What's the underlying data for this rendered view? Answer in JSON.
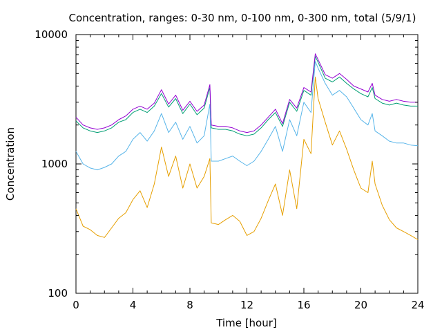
{
  "chart_data": {
    "type": "line",
    "title": "Concentration, ranges: 0-30 nm, 0-100 nm, 0-300 nm, total (5/9/1)",
    "xlabel": "Time [hour]",
    "ylabel": "Concentration",
    "xlim": [
      0,
      24
    ],
    "ylim": [
      100,
      10000
    ],
    "y_scale": "log",
    "x_ticks": [
      0,
      4,
      8,
      12,
      16,
      20,
      24
    ],
    "x_tick_labels": [
      "0",
      "4",
      "8",
      "12",
      "16",
      "20",
      "24"
    ],
    "y_ticks": [
      100,
      1000,
      10000
    ],
    "y_tick_labels": [
      "100",
      "1000",
      "10000"
    ],
    "grid": false,
    "legend": "none",
    "series": [
      {
        "color": "#e69f00",
        "x": [
          0,
          0.5,
          1,
          1.5,
          2,
          2.5,
          3,
          3.5,
          4,
          4.5,
          5,
          5.5,
          6,
          6.5,
          7,
          7.5,
          8,
          8.5,
          9,
          9.4,
          9.5,
          10,
          10.5,
          11,
          11.5,
          12,
          12.5,
          13,
          13.5,
          14,
          14.5,
          15,
          15.5,
          16,
          16.5,
          16.8,
          17,
          17.5,
          18,
          18.5,
          19,
          19.5,
          20,
          20.5,
          20.8,
          21,
          21.5,
          22,
          22.5,
          23,
          23.5,
          24
        ],
        "values": [
          450,
          330,
          310,
          280,
          270,
          320,
          380,
          420,
          530,
          620,
          460,
          700,
          1350,
          800,
          1150,
          650,
          1000,
          650,
          800,
          1100,
          350,
          340,
          370,
          400,
          360,
          280,
          300,
          380,
          520,
          700,
          400,
          900,
          450,
          1550,
          1200,
          4700,
          3200,
          2100,
          1400,
          1800,
          1300,
          900,
          650,
          600,
          1050,
          700,
          480,
          370,
          320,
          300,
          280,
          260
        ]
      },
      {
        "color": "#56b4e9",
        "x": [
          0,
          0.5,
          1,
          1.5,
          2,
          2.5,
          3,
          3.5,
          4,
          4.5,
          5,
          5.5,
          6,
          6.5,
          7,
          7.5,
          8,
          8.5,
          9,
          9.4,
          9.5,
          10,
          10.5,
          11,
          11.5,
          12,
          12.5,
          13,
          13.5,
          14,
          14.5,
          15,
          15.5,
          16,
          16.5,
          16.8,
          17,
          17.5,
          18,
          18.5,
          19,
          19.5,
          20,
          20.5,
          20.8,
          21,
          21.5,
          22,
          22.5,
          23,
          23.5,
          24
        ],
        "values": [
          1250,
          1000,
          930,
          900,
          940,
          1000,
          1150,
          1250,
          1550,
          1750,
          1500,
          1800,
          2450,
          1750,
          2100,
          1550,
          1950,
          1450,
          1650,
          2900,
          1050,
          1050,
          1100,
          1150,
          1050,
          970,
          1050,
          1250,
          1550,
          1950,
          1250,
          2200,
          1650,
          3000,
          2500,
          6200,
          5500,
          4200,
          3400,
          3700,
          3300,
          2700,
          2200,
          2000,
          2450,
          1800,
          1650,
          1500,
          1450,
          1450,
          1400,
          1380
        ]
      },
      {
        "color": "#009e73",
        "x": [
          0,
          0.5,
          1,
          1.5,
          2,
          2.5,
          3,
          3.5,
          4,
          4.5,
          5,
          5.5,
          6,
          6.5,
          7,
          7.5,
          8,
          8.5,
          9,
          9.4,
          9.5,
          10,
          10.5,
          11,
          11.5,
          12,
          12.5,
          13,
          13.5,
          14,
          14.5,
          15,
          15.5,
          16,
          16.5,
          16.8,
          17,
          17.5,
          18,
          18.5,
          19,
          19.5,
          20,
          20.5,
          20.8,
          21,
          21.5,
          22,
          22.5,
          23,
          23.5,
          24
        ],
        "values": [
          2150,
          1900,
          1800,
          1750,
          1800,
          1900,
          2100,
          2200,
          2500,
          2650,
          2500,
          2800,
          3500,
          2750,
          3200,
          2450,
          2900,
          2400,
          2700,
          3900,
          1900,
          1850,
          1850,
          1800,
          1700,
          1650,
          1700,
          1900,
          2200,
          2500,
          1950,
          3000,
          2550,
          3700,
          3400,
          6800,
          6100,
          4600,
          4300,
          4700,
          4200,
          3800,
          3500,
          3300,
          3900,
          3200,
          2950,
          2850,
          2950,
          2850,
          2800,
          2800
        ]
      },
      {
        "color": "#9400d3",
        "x": [
          0,
          0.5,
          1,
          1.5,
          2,
          2.5,
          3,
          3.5,
          4,
          4.5,
          5,
          5.5,
          6,
          6.5,
          7,
          7.5,
          8,
          8.5,
          9,
          9.4,
          9.5,
          10,
          10.5,
          11,
          11.5,
          12,
          12.5,
          13,
          13.5,
          14,
          14.5,
          15,
          15.5,
          16,
          16.5,
          16.8,
          17,
          17.5,
          18,
          18.5,
          19,
          19.5,
          20,
          20.5,
          20.8,
          21,
          21.5,
          22,
          22.5,
          23,
          23.5,
          24
        ],
        "values": [
          2300,
          2000,
          1900,
          1850,
          1900,
          2000,
          2200,
          2350,
          2650,
          2800,
          2650,
          2950,
          3750,
          2900,
          3400,
          2600,
          3050,
          2550,
          2850,
          4100,
          2000,
          1950,
          1950,
          1900,
          1800,
          1750,
          1800,
          2000,
          2300,
          2650,
          2050,
          3150,
          2700,
          3900,
          3600,
          7100,
          6400,
          4900,
          4600,
          5000,
          4500,
          4000,
          3800,
          3600,
          4200,
          3400,
          3150,
          3050,
          3150,
          3050,
          3000,
          3000
        ]
      }
    ]
  }
}
